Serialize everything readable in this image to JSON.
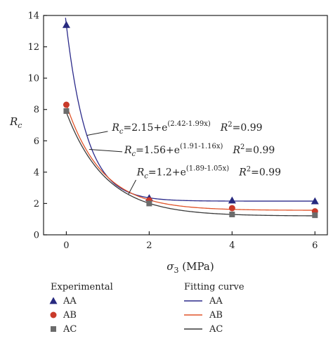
{
  "chart_data": {
    "type": "scatter",
    "title": "",
    "xlabel_symbol": "σ",
    "xlabel_sub": "3",
    "xlabel_rest": " (MPa)",
    "ylabel_symbol": "R",
    "ylabel_sub": "c",
    "xlim": [
      -0.55,
      6.3
    ],
    "ylim": [
      0,
      14
    ],
    "x_ticks": [
      0,
      2,
      4,
      6
    ],
    "y_ticks": [
      0,
      2,
      4,
      6,
      8,
      10,
      12,
      14
    ],
    "grid": false,
    "colors": {
      "AA": "#2b2a8a",
      "AB": "#e0542a",
      "AC": "#3a3a3a",
      "AA_point": "#27297f",
      "AB_point": "#c93a2a",
      "AC_point": "#6b6b6b"
    },
    "series": [
      {
        "name": "AA",
        "x": [
          0,
          2,
          4,
          6
        ],
        "y": [
          13.4,
          2.35,
          2.2,
          2.15
        ],
        "marker": "triangle",
        "fit": {
          "a": 2.15,
          "b": 2.42,
          "c": 1.99
        }
      },
      {
        "name": "AB",
        "x": [
          0,
          2,
          4,
          6
        ],
        "y": [
          8.3,
          2.2,
          1.7,
          1.5
        ],
        "marker": "circle",
        "fit": {
          "a": 1.56,
          "b": 1.91,
          "c": 1.16
        }
      },
      {
        "name": "AC",
        "x": [
          0,
          2,
          4,
          6
        ],
        "y": [
          7.9,
          2.0,
          1.3,
          1.25
        ],
        "marker": "square",
        "fit": {
          "a": 1.2,
          "b": 1.89,
          "c": 1.05
        }
      }
    ],
    "annotations": [
      {
        "series": "AA",
        "lhs_sym": "R",
        "lhs_sub": "c",
        "expr": "=2.15+e",
        "exp": "(2.42-1.99x)",
        "r2_sym": "R",
        "r2_sup": "2",
        "r2_val": "=0.99",
        "text_at": [
          1.1,
          6.65
        ],
        "arrow_to": [
          0.5,
          6.35
        ],
        "arrow_from": [
          1.0,
          6.6
        ]
      },
      {
        "series": "AB",
        "lhs_sym": "R",
        "lhs_sub": "c",
        "expr": "=1.56+e",
        "exp": "(1.91-1.16x)",
        "r2_sym": "R",
        "r2_sup": "2",
        "r2_val": "=0.99",
        "text_at": [
          1.4,
          5.2
        ],
        "arrow_to": [
          0.55,
          5.45
        ],
        "arrow_from": [
          1.35,
          5.3
        ]
      },
      {
        "series": "AC",
        "lhs_sym": "R",
        "lhs_sub": "c",
        "expr": "=1.2+e",
        "exp": "(1.89-1.05x)",
        "r2_sym": "R",
        "r2_sup": "2",
        "r2_val": "=0.99",
        "text_at": [
          1.7,
          3.8
        ],
        "arrow_to": [
          1.5,
          2.6
        ],
        "arrow_from": [
          1.68,
          3.5
        ]
      }
    ],
    "legend": {
      "placement": "bottom",
      "experimental_title": "Experimental",
      "fitting_title": "Fitting curve",
      "items": [
        "AA",
        "AB",
        "AC"
      ]
    }
  }
}
